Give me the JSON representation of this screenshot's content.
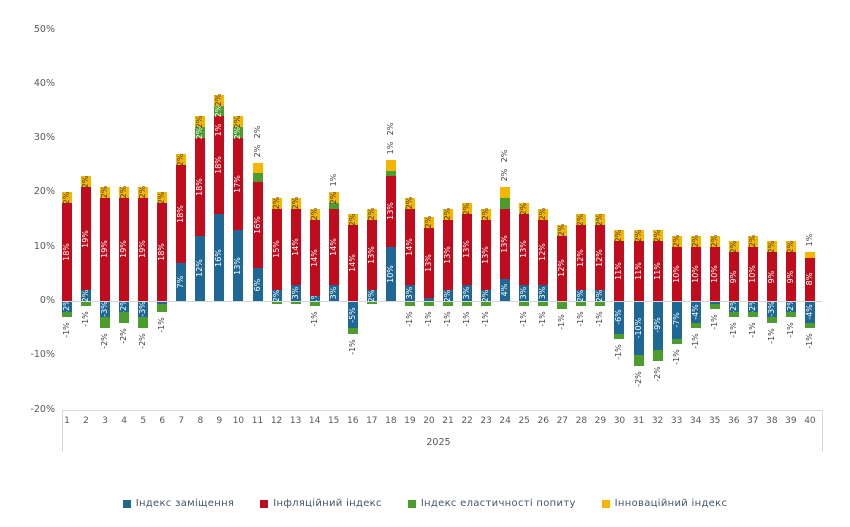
{
  "chart_data": {
    "type": "bar",
    "stacked": true,
    "title": "",
    "x_group_label": "2025",
    "categories": [
      "1",
      "2",
      "3",
      "4",
      "5",
      "6",
      "7",
      "8",
      "9",
      "10",
      "11",
      "12",
      "13",
      "14",
      "15",
      "16",
      "17",
      "18",
      "19",
      "20",
      "21",
      "22",
      "23",
      "24",
      "25",
      "26",
      "27",
      "28",
      "29",
      "30",
      "31",
      "32",
      "33",
      "34",
      "35",
      "36",
      "37",
      "38",
      "39",
      "40"
    ],
    "y_ticks": [
      {
        "v": 50,
        "t": "50%"
      },
      {
        "v": 40,
        "t": "40%"
      },
      {
        "v": 30,
        "t": "30%"
      },
      {
        "v": 20,
        "t": "20%"
      },
      {
        "v": 10,
        "t": "10%"
      },
      {
        "v": 0,
        "t": "0%"
      },
      {
        "v": -10,
        "t": "-10%"
      },
      {
        "v": -20,
        "t": "-20%"
      }
    ],
    "ylim": [
      -20,
      50
    ],
    "legend_position": "bottom",
    "grid": false,
    "series": [
      {
        "name": "Індекс заміщення",
        "color": "#1F6896",
        "label_color": "#ffffff"
      },
      {
        "name": "Інфляційний  індекс",
        "color": "#C00C1C",
        "label_color": "#ffffff"
      },
      {
        "name": "Індекс еластичності попиту",
        "color": "#4C9C2E",
        "label_color": "#ffffff"
      },
      {
        "name": "Інноваційний  індекс",
        "color": "#F5B500",
        "label_color": "#404040"
      }
    ],
    "bars": [
      [
        [
          -2,
          "-2%",
          "in"
        ],
        [
          18,
          "18%",
          "in"
        ],
        [
          -1,
          "-1%",
          "out"
        ],
        [
          2,
          "2%",
          "in"
        ]
      ],
      [
        [
          2,
          "2%",
          "in"
        ],
        [
          19,
          "19%",
          "in"
        ],
        [
          -1,
          "-1%",
          "out"
        ],
        [
          2,
          "2%",
          "in"
        ]
      ],
      [
        [
          -3,
          "-3%",
          "in"
        ],
        [
          19,
          "19%",
          "in"
        ],
        [
          -2,
          "-2%",
          "out"
        ],
        [
          2,
          "2%",
          "in"
        ]
      ],
      [
        [
          -2,
          "-2%",
          "in"
        ],
        [
          19,
          "19%",
          "in"
        ],
        [
          -2,
          "-2%",
          "out"
        ],
        [
          2,
          "2%",
          "in"
        ]
      ],
      [
        [
          -3,
          "-3%",
          "in"
        ],
        [
          19,
          "19%",
          "in"
        ],
        [
          -2,
          "-2%",
          "out"
        ],
        [
          2,
          "2%",
          "in"
        ]
      ],
      [
        [
          -0.5,
          null,
          "in"
        ],
        [
          18,
          "18%",
          "in"
        ],
        [
          -1.5,
          "-1%",
          "out"
        ],
        [
          2,
          "2%",
          "in"
        ]
      ],
      [
        [
          7,
          "7%",
          "in"
        ],
        [
          18,
          "18%",
          "in"
        ],
        [
          0,
          null,
          "in"
        ],
        [
          2,
          "2%",
          "in"
        ]
      ],
      [
        [
          12,
          "12%",
          "in"
        ],
        [
          18,
          "18%",
          "in"
        ],
        [
          2,
          "2%",
          "in"
        ],
        [
          2,
          "2%",
          "in"
        ]
      ],
      [
        [
          16,
          "16%",
          "in"
        ],
        [
          18,
          "18%",
          "in"
        ],
        [
          2,
          "2%",
          "in"
        ],
        [
          2,
          "2%",
          "in"
        ]
      ],
      [
        [
          13,
          "13%",
          "in"
        ],
        [
          17,
          "17%",
          "in"
        ],
        [
          2,
          "2%",
          "in"
        ],
        [
          2,
          "2%",
          "in"
        ]
      ],
      [
        [
          6,
          "6%",
          "in"
        ],
        [
          16,
          "16%",
          "in"
        ],
        [
          1.5,
          "2%",
          "out"
        ],
        [
          2,
          "2%",
          "out"
        ]
      ],
      [
        [
          2,
          "2%",
          "in"
        ],
        [
          15,
          "15%",
          "in"
        ],
        [
          -0.5,
          null,
          "out"
        ],
        [
          2,
          "2%",
          "in"
        ]
      ],
      [
        [
          3,
          "3%",
          "in"
        ],
        [
          14,
          "14%",
          "in"
        ],
        [
          -0.5,
          null,
          "out"
        ],
        [
          2,
          "2%",
          "in"
        ]
      ],
      [
        [
          1,
          "1%",
          "in"
        ],
        [
          14,
          "14%",
          "in"
        ],
        [
          -1,
          "-1%",
          "out"
        ],
        [
          2,
          "2%",
          "in"
        ]
      ],
      [
        [
          3,
          "3%",
          "in"
        ],
        [
          14,
          "14%",
          "in"
        ],
        [
          1,
          "1%",
          "out"
        ],
        [
          2,
          "2%",
          "in"
        ]
      ],
      [
        [
          -5,
          "-5%",
          "in"
        ],
        [
          14,
          "14%",
          "in"
        ],
        [
          -1,
          "-1%",
          "out"
        ],
        [
          2,
          "2%",
          "in"
        ]
      ],
      [
        [
          2,
          "2%",
          "in"
        ],
        [
          13,
          "13%",
          "in"
        ],
        [
          -0.5,
          null,
          "out"
        ],
        [
          2,
          "2%",
          "in"
        ]
      ],
      [
        [
          10,
          "10%",
          "in"
        ],
        [
          13,
          "13%",
          "in"
        ],
        [
          1,
          "1%",
          "out"
        ],
        [
          2,
          "2%",
          "out"
        ]
      ],
      [
        [
          3,
          "3%",
          "in"
        ],
        [
          14,
          "14%",
          "in"
        ],
        [
          -1,
          "-1%",
          "out"
        ],
        [
          2,
          "2%",
          "in"
        ]
      ],
      [
        [
          0.5,
          null,
          "in"
        ],
        [
          13,
          "13%",
          "in"
        ],
        [
          -1,
          "-1%",
          "out"
        ],
        [
          2,
          "2%",
          "in"
        ]
      ],
      [
        [
          2,
          "2%",
          "in"
        ],
        [
          13,
          "13%",
          "in"
        ],
        [
          -1,
          "-1%",
          "out"
        ],
        [
          2,
          "2%",
          "in"
        ]
      ],
      [
        [
          3,
          "3%",
          "in"
        ],
        [
          13,
          "13%",
          "in"
        ],
        [
          -1,
          "-1%",
          "out"
        ],
        [
          2,
          "2%",
          "in"
        ]
      ],
      [
        [
          2,
          "2%",
          "in"
        ],
        [
          13,
          "13%",
          "in"
        ],
        [
          -1,
          "-1%",
          "out"
        ],
        [
          2,
          "2%",
          "in"
        ]
      ],
      [
        [
          4,
          "4%",
          "in"
        ],
        [
          13,
          "13%",
          "in"
        ],
        [
          2,
          "2%",
          "out"
        ],
        [
          2,
          "2%",
          "out"
        ]
      ],
      [
        [
          3,
          "3%",
          "in"
        ],
        [
          13,
          "13%",
          "in"
        ],
        [
          -1,
          "-1%",
          "out"
        ],
        [
          2,
          "2%",
          "in"
        ]
      ],
      [
        [
          3,
          "3%",
          "in"
        ],
        [
          12,
          "12%",
          "in"
        ],
        [
          -1,
          "-1%",
          "out"
        ],
        [
          2,
          "2%",
          "in"
        ]
      ],
      [
        [
          0,
          null,
          "in"
        ],
        [
          12,
          "12%",
          "in"
        ],
        [
          -1.5,
          "-1%",
          "out"
        ],
        [
          2,
          "2%",
          "in"
        ]
      ],
      [
        [
          2,
          "2%",
          "in"
        ],
        [
          12,
          "12%",
          "in"
        ],
        [
          -1,
          "-1%",
          "out"
        ],
        [
          2,
          "2%",
          "in"
        ]
      ],
      [
        [
          2,
          "2%",
          "in"
        ],
        [
          12,
          "12%",
          "in"
        ],
        [
          -1,
          "-1%",
          "out"
        ],
        [
          2,
          "2%",
          "in"
        ]
      ],
      [
        [
          -6,
          "-6%",
          "in"
        ],
        [
          11,
          "11%",
          "in"
        ],
        [
          -1,
          "-1%",
          "out"
        ],
        [
          2,
          "2%",
          "in"
        ]
      ],
      [
        [
          -10,
          "-10%",
          "in"
        ],
        [
          11,
          "11%",
          "in"
        ],
        [
          -2,
          "-2%",
          "out"
        ],
        [
          2,
          "2%",
          "in"
        ]
      ],
      [
        [
          -9,
          "-9%",
          "in"
        ],
        [
          11,
          "11%",
          "in"
        ],
        [
          -2,
          "-2%",
          "out"
        ],
        [
          2,
          "2%",
          "in"
        ]
      ],
      [
        [
          -7,
          "-7%",
          "in"
        ],
        [
          10,
          "10%",
          "in"
        ],
        [
          -1,
          "-1%",
          "out"
        ],
        [
          2,
          "2%",
          "in"
        ]
      ],
      [
        [
          -4,
          "-4%",
          "in"
        ],
        [
          10,
          "10%",
          "in"
        ],
        [
          -1,
          "-1%",
          "out"
        ],
        [
          2,
          "2%",
          "in"
        ]
      ],
      [
        [
          -0.5,
          null,
          "in"
        ],
        [
          10,
          "10%",
          "in"
        ],
        [
          -1,
          "-1%",
          "out"
        ],
        [
          2,
          "2%",
          "in"
        ]
      ],
      [
        [
          -2,
          "-2%",
          "in"
        ],
        [
          9,
          "9%",
          "in"
        ],
        [
          -1,
          "-1%",
          "out"
        ],
        [
          2,
          "2%",
          "in"
        ]
      ],
      [
        [
          -2,
          "-2%",
          "in"
        ],
        [
          10,
          "10%",
          "in"
        ],
        [
          -1,
          "-1%",
          "out"
        ],
        [
          2,
          "2%",
          "in"
        ]
      ],
      [
        [
          -3,
          "-3%",
          "in"
        ],
        [
          9,
          "9%",
          "in"
        ],
        [
          -1,
          "-1%",
          "out"
        ],
        [
          2,
          "2%",
          "in"
        ]
      ],
      [
        [
          -2,
          "-2%",
          "in"
        ],
        [
          9,
          "9%",
          "in"
        ],
        [
          -1,
          "-1%",
          "out"
        ],
        [
          2,
          "2%",
          "in"
        ]
      ],
      [
        [
          -4,
          "-4%",
          "in"
        ],
        [
          8,
          "8%",
          "in"
        ],
        [
          -1,
          "-1%",
          "out"
        ],
        [
          1,
          "1%",
          "out"
        ]
      ]
    ],
    "extra_labels": [
      {
        "bar": 9,
        "text": "1%",
        "at_pct": 31.5,
        "color": "#ffffff"
      }
    ]
  },
  "outside_label_color": "#404040",
  "axis_color": "#595959"
}
